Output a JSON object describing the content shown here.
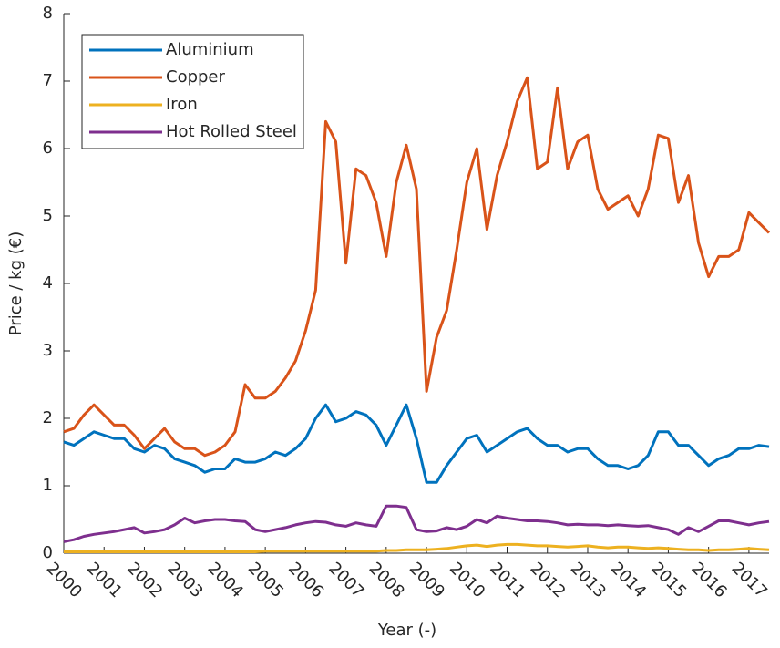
{
  "chart_data": {
    "type": "line",
    "xlabel": "Year (-)",
    "ylabel": "Price / kg (€)",
    "x": [
      2000,
      2000.25,
      2000.5,
      2000.75,
      2001,
      2001.25,
      2001.5,
      2001.75,
      2002,
      2002.25,
      2002.5,
      2002.75,
      2003,
      2003.25,
      2003.5,
      2003.75,
      2004,
      2004.25,
      2004.5,
      2004.75,
      2005,
      2005.25,
      2005.5,
      2005.75,
      2006,
      2006.25,
      2006.5,
      2006.75,
      2007,
      2007.25,
      2007.5,
      2007.75,
      2008,
      2008.25,
      2008.5,
      2008.75,
      2009,
      2009.25,
      2009.5,
      2009.75,
      2010,
      2010.25,
      2010.5,
      2010.75,
      2011,
      2011.25,
      2011.5,
      2011.75,
      2012,
      2012.25,
      2012.5,
      2012.75,
      2013,
      2013.25,
      2013.5,
      2013.75,
      2014,
      2014.25,
      2014.5,
      2014.75,
      2015,
      2015.25,
      2015.5,
      2015.75,
      2016,
      2016.25,
      2016.5,
      2016.75,
      2017,
      2017.25,
      2017.5
    ],
    "series": [
      {
        "name": "Aluminium",
        "color": "#0072BD",
        "values": [
          1.65,
          1.6,
          1.7,
          1.8,
          1.75,
          1.7,
          1.7,
          1.55,
          1.5,
          1.6,
          1.55,
          1.4,
          1.35,
          1.3,
          1.2,
          1.25,
          1.25,
          1.4,
          1.35,
          1.35,
          1.4,
          1.5,
          1.45,
          1.55,
          1.7,
          2.0,
          2.2,
          1.95,
          2.0,
          2.1,
          2.05,
          1.9,
          1.6,
          1.9,
          2.2,
          1.7,
          1.05,
          1.05,
          1.3,
          1.5,
          1.7,
          1.75,
          1.5,
          1.6,
          1.7,
          1.8,
          1.85,
          1.7,
          1.6,
          1.6,
          1.5,
          1.55,
          1.55,
          1.4,
          1.3,
          1.3,
          1.25,
          1.3,
          1.45,
          1.8,
          1.8,
          1.6,
          1.6,
          1.45,
          1.3,
          1.4,
          1.45,
          1.55,
          1.55,
          1.6,
          1.58
        ]
      },
      {
        "name": "Copper",
        "color": "#D95319",
        "values": [
          1.8,
          1.85,
          2.05,
          2.2,
          2.05,
          1.9,
          1.9,
          1.75,
          1.55,
          1.7,
          1.85,
          1.65,
          1.55,
          1.55,
          1.45,
          1.5,
          1.6,
          1.8,
          2.5,
          2.3,
          2.3,
          2.4,
          2.6,
          2.85,
          3.3,
          3.9,
          6.4,
          6.1,
          4.3,
          5.7,
          5.6,
          5.2,
          4.4,
          5.5,
          6.05,
          5.4,
          2.4,
          3.2,
          3.6,
          4.5,
          5.5,
          6.0,
          4.8,
          5.6,
          6.1,
          6.7,
          7.05,
          5.7,
          5.8,
          6.9,
          5.7,
          6.1,
          6.2,
          5.4,
          5.1,
          5.2,
          5.3,
          5.0,
          5.4,
          6.2,
          6.15,
          5.2,
          5.6,
          4.6,
          4.1,
          4.4,
          4.4,
          4.5,
          5.05,
          4.9,
          4.75
        ]
      },
      {
        "name": "Iron",
        "color": "#EDB120",
        "values": [
          0.02,
          0.02,
          0.02,
          0.02,
          0.02,
          0.02,
          0.02,
          0.02,
          0.02,
          0.02,
          0.02,
          0.02,
          0.02,
          0.02,
          0.02,
          0.02,
          0.02,
          0.02,
          0.02,
          0.02,
          0.03,
          0.03,
          0.03,
          0.03,
          0.03,
          0.03,
          0.03,
          0.03,
          0.03,
          0.03,
          0.03,
          0.03,
          0.04,
          0.04,
          0.05,
          0.05,
          0.05,
          0.06,
          0.07,
          0.09,
          0.11,
          0.12,
          0.1,
          0.12,
          0.13,
          0.13,
          0.12,
          0.11,
          0.11,
          0.1,
          0.09,
          0.1,
          0.11,
          0.09,
          0.08,
          0.09,
          0.09,
          0.08,
          0.07,
          0.08,
          0.07,
          0.06,
          0.05,
          0.05,
          0.04,
          0.05,
          0.05,
          0.06,
          0.07,
          0.06,
          0.05
        ]
      },
      {
        "name": "Hot Rolled Steel",
        "color": "#7E2F8E",
        "values": [
          0.17,
          0.2,
          0.25,
          0.28,
          0.3,
          0.32,
          0.35,
          0.38,
          0.3,
          0.32,
          0.35,
          0.42,
          0.52,
          0.45,
          0.48,
          0.5,
          0.5,
          0.48,
          0.47,
          0.35,
          0.32,
          0.35,
          0.38,
          0.42,
          0.45,
          0.47,
          0.46,
          0.42,
          0.4,
          0.45,
          0.42,
          0.4,
          0.7,
          0.7,
          0.68,
          0.35,
          0.32,
          0.33,
          0.38,
          0.35,
          0.4,
          0.5,
          0.45,
          0.55,
          0.52,
          0.5,
          0.48,
          0.48,
          0.47,
          0.45,
          0.42,
          0.43,
          0.42,
          0.42,
          0.41,
          0.42,
          0.41,
          0.4,
          0.41,
          0.38,
          0.35,
          0.28,
          0.38,
          0.32,
          0.4,
          0.48,
          0.48,
          0.45,
          0.42,
          0.45,
          0.47
        ]
      }
    ],
    "xlim": [
      2000,
      2017.5
    ],
    "xticks": [
      2000,
      2001,
      2002,
      2003,
      2004,
      2005,
      2006,
      2007,
      2008,
      2009,
      2010,
      2011,
      2012,
      2013,
      2014,
      2015,
      2016,
      2017
    ],
    "ylim": [
      0,
      8
    ],
    "yticks": [
      0,
      1,
      2,
      3,
      4,
      5,
      6,
      7,
      8
    ],
    "legend": "upper left"
  }
}
